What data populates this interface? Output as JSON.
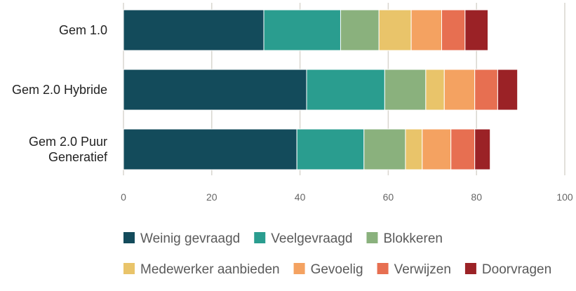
{
  "chart_data": {
    "type": "bar",
    "orientation": "horizontal",
    "stacked": true,
    "categories": [
      [
        "Gem 1.0"
      ],
      [
        "Gem 2.0 Hybride"
      ],
      [
        "Gem 2.0 Puur",
        "Generatief"
      ]
    ],
    "series": [
      {
        "name": "Weinig gevraagd",
        "color": "#134b5b",
        "values": [
          31.8,
          41.5,
          39.3
        ]
      },
      {
        "name": "Veelgevraagd",
        "color": "#2a9d8f",
        "values": [
          17.4,
          17.7,
          15.2
        ]
      },
      {
        "name": "Blokkeren",
        "color": "#8ab17d",
        "values": [
          8.7,
          9.3,
          9.4
        ]
      },
      {
        "name": "Medewerker aanbieden",
        "color": "#e9c46a",
        "values": [
          7.3,
          4.2,
          3.8
        ]
      },
      {
        "name": "Gevoelig",
        "color": "#f4a261",
        "values": [
          6.9,
          6.9,
          6.5
        ]
      },
      {
        "name": "Verwijzen",
        "color": "#e76f51",
        "values": [
          5.3,
          5.2,
          5.4
        ]
      },
      {
        "name": "Doorvragen",
        "color": "#9b2226",
        "values": [
          5.2,
          4.5,
          3.5
        ]
      }
    ],
    "xlim": [
      0,
      100
    ],
    "xticks": [
      0,
      20,
      40,
      60,
      80,
      100
    ],
    "gridlines": true,
    "legend_position": "bottom"
  }
}
